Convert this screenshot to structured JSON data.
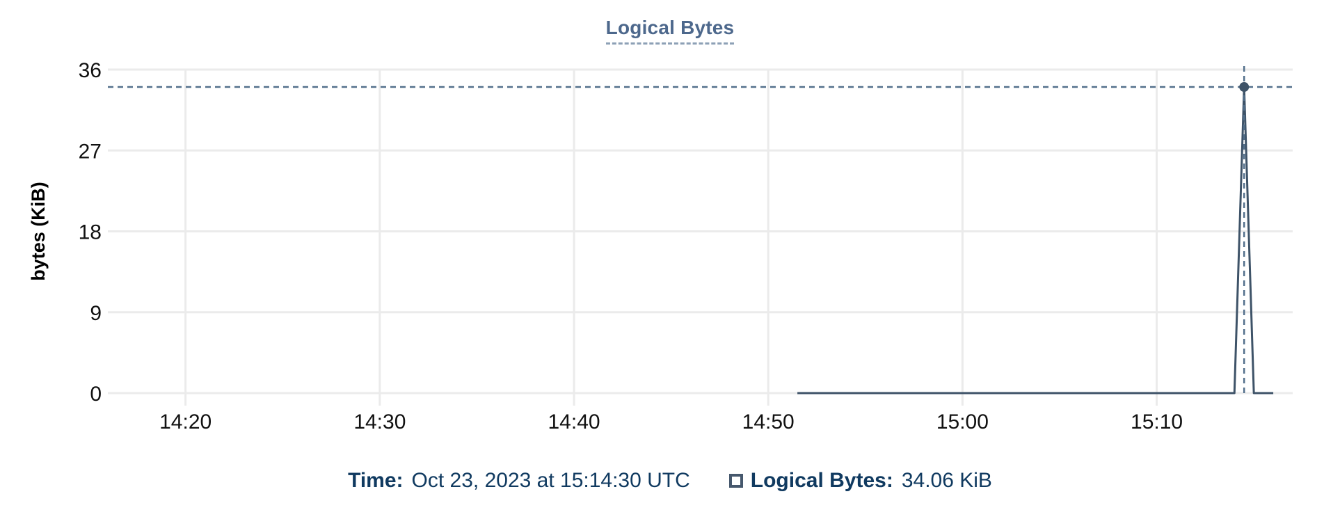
{
  "title": "Logical Bytes",
  "colors": {
    "title": "#4d688c",
    "title_underline": "#8da0b6",
    "gridline": "#ebebeb",
    "tick_text": "#111111",
    "axis_title_text": "#000000",
    "line": "#3e5368",
    "marker": "#3e5368",
    "crosshair": "#53708c",
    "legend_text": "#103a60",
    "legend_swatch_border": "#46586d"
  },
  "tooltip": {
    "time_label": "Time:",
    "time_value": "Oct 23, 2023 at 15:14:30 UTC",
    "series_label": "Logical Bytes:",
    "series_value": "34.06 KiB"
  },
  "chart_data": {
    "type": "line",
    "title": "Logical Bytes",
    "xlabel": "",
    "ylabel": "bytes (KiB)",
    "ylim": [
      0,
      36
    ],
    "y_ticks": [
      0,
      9,
      18,
      27,
      36
    ],
    "x_ticks": [
      "14:20",
      "14:30",
      "14:40",
      "14:50",
      "15:00",
      "15:10"
    ],
    "x_range": [
      "14:16",
      "15:17"
    ],
    "grid": true,
    "legend_position": "bottom",
    "series": [
      {
        "name": "Logical Bytes",
        "points": [
          {
            "time": "14:51:30",
            "value": 0
          },
          {
            "time": "15:14:00",
            "value": 0
          },
          {
            "time": "15:14:30",
            "value": 34.06
          },
          {
            "time": "15:15:00",
            "value": 0
          },
          {
            "time": "15:16:00",
            "value": 0
          }
        ]
      }
    ],
    "selected_point": {
      "time": "15:14:30",
      "value": 34.06,
      "value_label": "34.06 KiB",
      "date_label": "Oct 23, 2023 at 15:14:30 UTC"
    }
  }
}
